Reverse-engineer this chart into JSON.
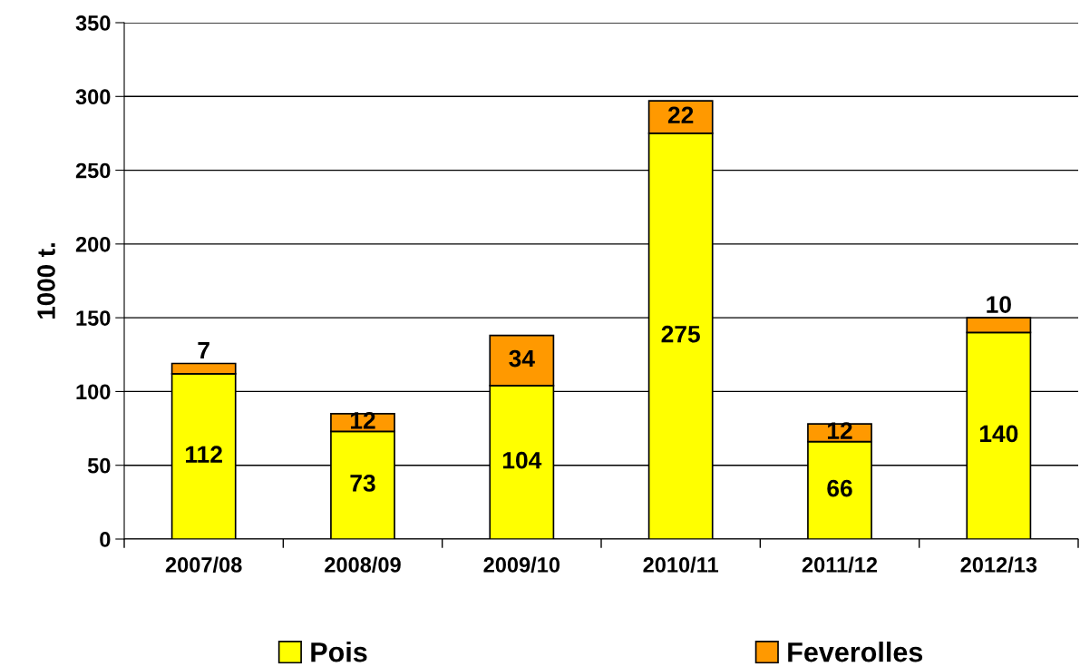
{
  "chart_data": {
    "type": "bar",
    "stacked": true,
    "ylabel": "1000 t.",
    "categories": [
      "2007/08",
      "2008/09",
      "2009/10",
      "2010/11",
      "2011/12",
      "2012/13"
    ],
    "series": [
      {
        "name": "Pois",
        "color": "#ffff00",
        "values": [
          112,
          73,
          104,
          275,
          66,
          140
        ]
      },
      {
        "name": "Feverolles",
        "color": "#ff9900",
        "values": [
          7,
          12,
          34,
          22,
          12,
          10
        ]
      }
    ],
    "ylim": [
      0,
      350
    ],
    "yticks": [
      0,
      50,
      100,
      150,
      200,
      250,
      300,
      350
    ],
    "grid": "y",
    "legend": "bottom",
    "data_labels": true
  }
}
